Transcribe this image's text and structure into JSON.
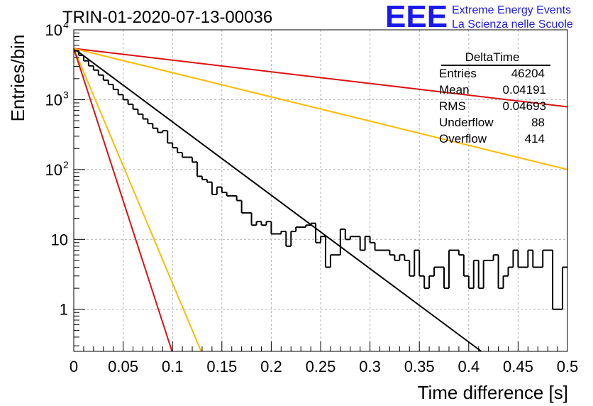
{
  "chart_data": {
    "type": "line",
    "title": "TRIN-01-2020-07-13-00036",
    "xlabel": "Time difference [s]",
    "ylabel": "Entries/bin",
    "xlim": [
      0,
      0.5
    ],
    "ylim": [
      0.25,
      10000
    ],
    "y_scale": "log",
    "grid": true,
    "x_ticks": [
      "0",
      "0.05",
      "0.1",
      "0.15",
      "0.2",
      "0.25",
      "0.3",
      "0.35",
      "0.4",
      "0.45",
      "0.5"
    ],
    "y_ticks": [
      {
        "value": 1,
        "label": "1"
      },
      {
        "value": 10,
        "label": "10"
      },
      {
        "value": 100,
        "label": "10",
        "sup": "2"
      },
      {
        "value": 1000,
        "label": "10",
        "sup": "3"
      },
      {
        "value": 10000,
        "label": "10",
        "sup": "4"
      }
    ],
    "histogram": {
      "bin_width": 0.005,
      "color": "#000000",
      "values": [
        5000,
        4300,
        3600,
        3050,
        2650,
        2250,
        1900,
        1650,
        1400,
        1180,
        1000,
        860,
        730,
        620,
        530,
        455,
        390,
        340,
        360,
        240,
        205,
        175,
        150,
        150,
        128,
        80,
        72,
        66,
        44,
        56,
        47,
        42,
        42,
        36,
        24,
        24,
        16,
        18,
        16,
        18,
        12,
        12,
        13,
        8,
        13,
        15,
        15,
        16,
        17,
        9,
        11,
        4,
        6,
        6,
        14,
        10,
        11,
        11,
        7,
        11,
        9,
        7,
        7,
        7,
        6,
        5,
        6,
        5,
        3,
        7,
        3,
        2,
        3,
        4,
        4,
        2,
        7,
        7,
        6,
        3,
        2,
        5,
        2,
        5,
        5,
        6,
        2,
        3,
        4,
        7,
        4,
        4,
        7,
        4,
        4,
        7,
        7,
        1,
        1,
        4
      ]
    },
    "series": [
      {
        "color": "#000000",
        "x": [
          0,
          0.4127
        ],
        "y": [
          5400,
          0.25
        ]
      },
      {
        "color": "#dd1111",
        "x": [
          0,
          0.5
        ],
        "y": [
          5400,
          790
        ]
      },
      {
        "color": "#ffbb00",
        "x": [
          0,
          0.5
        ],
        "y": [
          5400,
          100
        ]
      },
      {
        "color": "#ffbb00",
        "x": [
          0,
          0.129
        ],
        "y": [
          5400,
          0.25
        ]
      },
      {
        "color": "#dd1111",
        "x": [
          0,
          0.0995
        ],
        "y": [
          5400,
          0.25
        ]
      }
    ],
    "stats": {
      "title": "DeltaTime",
      "rows": [
        {
          "label": "Entries",
          "value": "46204"
        },
        {
          "label": "Mean",
          "value": "0.04191"
        },
        {
          "label": "RMS",
          "value": "0.04693"
        },
        {
          "label": "Underflow",
          "value": "88"
        },
        {
          "label": "Overflow",
          "value": "414"
        }
      ]
    }
  },
  "logo": {
    "text": "EEE",
    "line1": "Extreme Energy Events",
    "line2": "La Scienza nelle Scuole",
    "color": "#1a1aee"
  }
}
